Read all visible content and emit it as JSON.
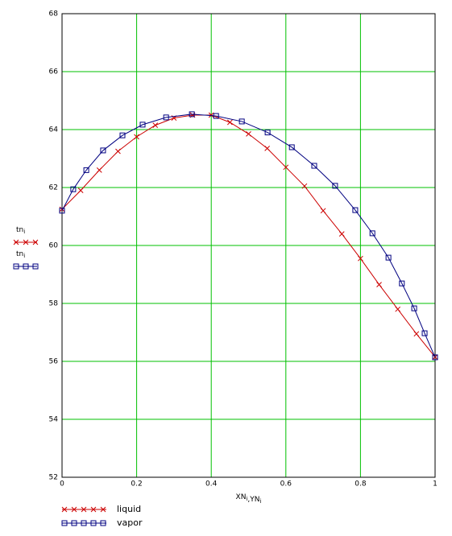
{
  "chart_data": {
    "type": "line",
    "y_labels": [
      {
        "text": "tn",
        "sub": "i"
      },
      {
        "text": "tn",
        "sub": "i"
      }
    ],
    "x_label": [
      {
        "text": "XN",
        "sub": "i"
      },
      {
        "text": ",YN",
        "sub": "i"
      }
    ],
    "xlim": [
      0,
      1
    ],
    "ylim": [
      52,
      68
    ],
    "xticks": [
      0,
      0.2,
      0.4,
      0.6,
      0.8,
      1
    ],
    "yticks": [
      52,
      54,
      56,
      58,
      60,
      62,
      64,
      66,
      68
    ],
    "grid": true,
    "grid_color": "#00c000",
    "series": [
      {
        "name": "liquid",
        "color": "#cc0000",
        "marker": "x",
        "x": [
          0,
          0.05,
          0.1,
          0.15,
          0.2,
          0.25,
          0.3,
          0.35,
          0.4,
          0.45,
          0.5,
          0.55,
          0.6,
          0.65,
          0.7,
          0.75,
          0.8,
          0.85,
          0.9,
          0.95,
          1
        ],
        "values": [
          61.25,
          61.9,
          62.6,
          63.25,
          63.75,
          64.15,
          64.4,
          64.5,
          64.5,
          64.25,
          63.85,
          63.35,
          62.7,
          62.05,
          61.2,
          60.4,
          59.55,
          58.65,
          57.8,
          56.95,
          56.15
        ]
      },
      {
        "name": "vapor",
        "color": "#000080",
        "marker": "square",
        "x": [
          0,
          0.03,
          0.065,
          0.11,
          0.162,
          0.216,
          0.279,
          0.348,
          0.413,
          0.482,
          0.551,
          0.616,
          0.676,
          0.732,
          0.786,
          0.832,
          0.875,
          0.911,
          0.944,
          0.972,
          1
        ],
        "values": [
          61.2,
          61.94,
          62.6,
          63.28,
          63.8,
          64.17,
          64.42,
          64.53,
          64.47,
          64.28,
          63.9,
          63.39,
          62.75,
          62.06,
          61.22,
          60.42,
          59.58,
          58.69,
          57.83,
          56.97,
          56.14
        ]
      }
    ]
  }
}
